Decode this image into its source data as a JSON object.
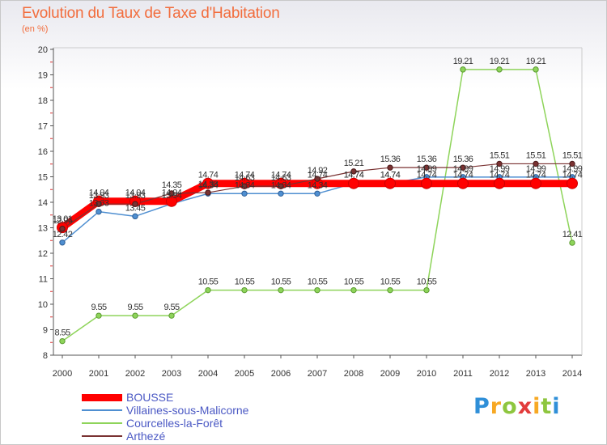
{
  "header": {
    "title": "Evolution du Taux de Taxe d'Habitation",
    "unit": "(en %)"
  },
  "logo": {
    "text": "Proxiti"
  },
  "chart_data": {
    "type": "line",
    "title": "Evolution du Taux de Taxe d'Habitation",
    "ylabel": "(en %)",
    "ylim": [
      8,
      20
    ],
    "yticks": [
      8,
      9,
      10,
      11,
      12,
      13,
      14,
      15,
      16,
      17,
      18,
      19,
      20
    ],
    "grid": false,
    "legend_position": "bottom-left",
    "x": [
      "2000",
      "2001",
      "2002",
      "2003",
      "2004",
      "2005",
      "2006",
      "2007",
      "2008",
      "2009",
      "2010",
      "2011",
      "2012",
      "2013",
      "2014"
    ],
    "series": [
      {
        "name": "BOUSSE",
        "color": "#ff0000",
        "values": [
          13.01,
          14.04,
          14.04,
          14.04,
          14.74,
          14.74,
          14.74,
          14.74,
          14.74,
          14.74,
          14.74,
          14.74,
          14.74,
          14.74,
          14.74
        ],
        "labels": [
          "13.01",
          "14.04",
          "14.04",
          "14.04",
          "14.74",
          "14.74",
          "14.74",
          "14.74",
          "14.74",
          "14.74",
          "14.74",
          "14.74",
          "14.74",
          "14.74",
          "14.74"
        ]
      },
      {
        "name": "Villaines-sous-Malicorne",
        "color": "#4f8fd1",
        "values": [
          12.42,
          13.63,
          13.45,
          13.94,
          14.34,
          14.34,
          14.34,
          14.34,
          14.74,
          14.74,
          14.99,
          14.99,
          14.99,
          14.99,
          14.99
        ],
        "labels": [
          "12.42",
          "13.63",
          "13.45",
          "13.94",
          "14.34",
          "14.34",
          "14.34",
          "14.34",
          "14.74",
          "14.74",
          "14.99",
          "14.99",
          "14.99",
          "14.99",
          "14.99"
        ]
      },
      {
        "name": "Courcelles-la-Forêt",
        "color": "#8ed45a",
        "values": [
          8.55,
          9.55,
          9.55,
          9.55,
          10.55,
          10.55,
          10.55,
          10.55,
          10.55,
          10.55,
          10.55,
          19.21,
          19.21,
          19.21,
          12.41
        ],
        "labels": [
          "8.55",
          "9.55",
          "9.55",
          "9.55",
          "10.55",
          "10.55",
          "10.55",
          "10.55",
          "10.55",
          "10.55",
          "10.55",
          "19.21",
          "19.21",
          "19.21",
          "12.41"
        ]
      },
      {
        "name": "Arthezé",
        "color": "#7a3232",
        "values": [
          12.96,
          13.93,
          13.93,
          14.35,
          14.38,
          14.63,
          14.63,
          14.92,
          15.21,
          15.36,
          15.36,
          15.36,
          15.51,
          15.51,
          15.51
        ],
        "labels": [
          "12.96",
          "13.93",
          "13.93",
          "14.35",
          "14.38",
          "14.63",
          "14.63",
          "14.92",
          "15.21",
          "15.36",
          "15.36",
          "15.36",
          "15.51",
          "15.51",
          "15.51"
        ]
      }
    ]
  }
}
